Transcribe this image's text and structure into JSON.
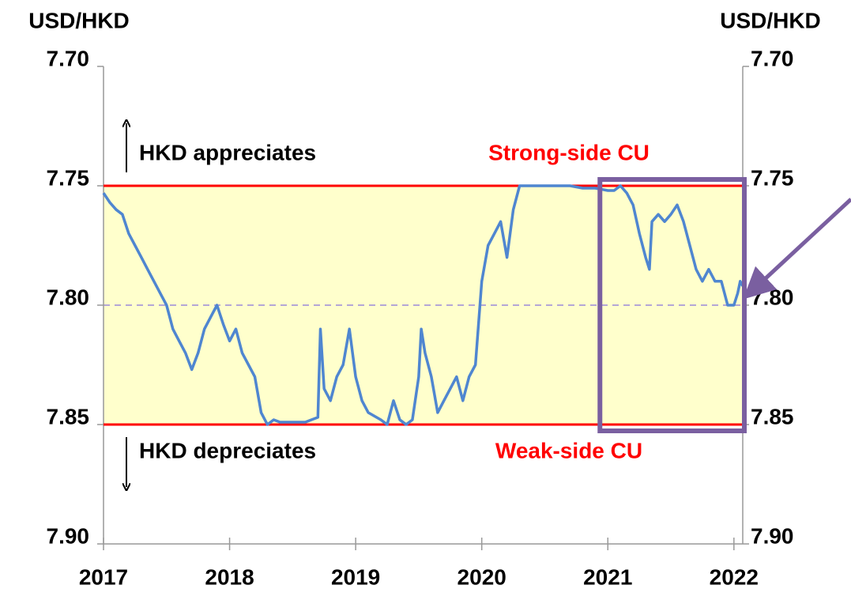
{
  "chart_data": {
    "type": "line",
    "y_axis_label": "USD/HKD",
    "y2_axis_label": "USD/HKD",
    "xlim": [
      2017,
      2022.07
    ],
    "xticks": [
      2017,
      2018,
      2019,
      2020,
      2021,
      2022
    ],
    "ylim": [
      7.9,
      7.7
    ],
    "yticks": [
      {
        "value": 7.7,
        "label": "7.70"
      },
      {
        "value": 7.75,
        "label": "7.75"
      },
      {
        "value": 7.8,
        "label": "7.80"
      },
      {
        "value": 7.85,
        "label": "7.85"
      },
      {
        "value": 7.9,
        "label": "7.90"
      }
    ],
    "y2lim": [
      7.9,
      7.7
    ],
    "y2ticks": [
      {
        "value": 7.7,
        "label": "7.70"
      },
      {
        "value": 7.75,
        "label": "7.75"
      },
      {
        "value": 7.8,
        "label": "7.80"
      },
      {
        "value": 7.85,
        "label": "7.85"
      },
      {
        "value": 7.9,
        "label": "7.90"
      }
    ],
    "band": {
      "y": [
        7.75,
        7.85
      ],
      "color": "#ffffcc"
    },
    "reference_lines": [
      {
        "value": 7.75,
        "label": "Strong-side CU",
        "color": "#ff0000"
      },
      {
        "value": 7.85,
        "label": "Weak-side CU",
        "color": "#ff0000"
      }
    ],
    "midline": {
      "value": 7.8,
      "color": "#b4a7d6"
    },
    "annotations": [
      "HKD appreciates",
      "HKD depreciates"
    ],
    "highlight": {
      "x": [
        2021,
        2022.07
      ],
      "y": [
        7.75,
        7.85
      ],
      "color": "#7a5fa0"
    },
    "series": [
      {
        "name": "USD/HKD",
        "color": "#4f86d0",
        "x": [
          2017.0,
          2017.05,
          2017.1,
          2017.15,
          2017.2,
          2017.25,
          2017.3,
          2017.35,
          2017.4,
          2017.45,
          2017.5,
          2017.55,
          2017.6,
          2017.65,
          2017.7,
          2017.75,
          2017.8,
          2017.85,
          2017.9,
          2017.95,
          2018.0,
          2018.05,
          2018.1,
          2018.15,
          2018.2,
          2018.25,
          2018.3,
          2018.35,
          2018.4,
          2018.5,
          2018.6,
          2018.7,
          2018.72,
          2018.75,
          2018.8,
          2018.85,
          2018.9,
          2018.95,
          2019.0,
          2019.05,
          2019.1,
          2019.2,
          2019.25,
          2019.3,
          2019.35,
          2019.4,
          2019.45,
          2019.5,
          2019.52,
          2019.55,
          2019.6,
          2019.65,
          2019.7,
          2019.75,
          2019.8,
          2019.85,
          2019.9,
          2019.95,
          2020.0,
          2020.05,
          2020.1,
          2020.15,
          2020.2,
          2020.25,
          2020.3,
          2020.4,
          2020.5,
          2020.6,
          2020.7,
          2020.8,
          2020.9,
          2021.0,
          2021.05,
          2021.1,
          2021.15,
          2021.2,
          2021.25,
          2021.3,
          2021.33,
          2021.35,
          2021.4,
          2021.45,
          2021.5,
          2021.55,
          2021.6,
          2021.65,
          2021.7,
          2021.75,
          2021.8,
          2021.85,
          2021.9,
          2021.95,
          2022.0,
          2022.03,
          2022.05,
          2022.07
        ],
        "values": [
          7.753,
          7.757,
          7.76,
          7.762,
          7.77,
          7.775,
          7.78,
          7.785,
          7.79,
          7.795,
          7.8,
          7.81,
          7.815,
          7.82,
          7.827,
          7.82,
          7.81,
          7.805,
          7.8,
          7.808,
          7.815,
          7.81,
          7.82,
          7.825,
          7.83,
          7.845,
          7.85,
          7.848,
          7.849,
          7.849,
          7.849,
          7.847,
          7.81,
          7.835,
          7.84,
          7.83,
          7.825,
          7.81,
          7.83,
          7.84,
          7.845,
          7.848,
          7.85,
          7.84,
          7.848,
          7.85,
          7.848,
          7.83,
          7.81,
          7.82,
          7.83,
          7.845,
          7.84,
          7.835,
          7.83,
          7.84,
          7.83,
          7.825,
          7.79,
          7.775,
          7.77,
          7.765,
          7.78,
          7.76,
          7.75,
          7.75,
          7.75,
          7.75,
          7.75,
          7.751,
          7.751,
          7.752,
          7.752,
          7.75,
          7.753,
          7.758,
          7.77,
          7.78,
          7.785,
          7.765,
          7.762,
          7.765,
          7.762,
          7.758,
          7.765,
          7.775,
          7.785,
          7.79,
          7.785,
          7.79,
          7.79,
          7.8,
          7.8,
          7.795,
          7.79,
          7.792
        ]
      }
    ]
  }
}
